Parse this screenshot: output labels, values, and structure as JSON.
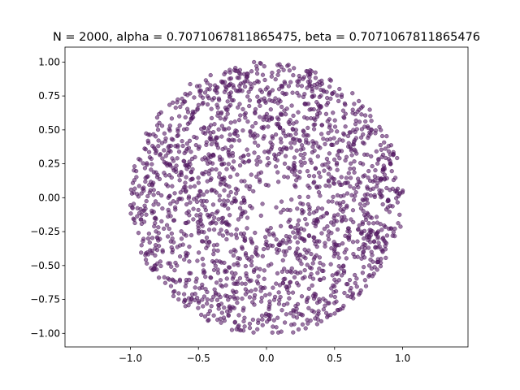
{
  "chart_data": {
    "type": "scatter",
    "title": "N = 2000, alpha = 0.7071067811865475, beta = 0.7071067811865476",
    "xlabel": "",
    "ylabel": "",
    "xlim": [
      -1.48,
      1.48
    ],
    "ylim": [
      -1.1,
      1.11
    ],
    "x_ticks": [
      -1.0,
      -0.5,
      0.0,
      0.5,
      1.0
    ],
    "x_tick_labels": [
      "−1.0",
      "−0.5",
      "0.0",
      "0.5",
      "1.0"
    ],
    "y_ticks": [
      1.0,
      0.75,
      0.5,
      0.25,
      0.0,
      -0.25,
      -0.5,
      -0.75,
      -1.0
    ],
    "y_tick_labels": [
      "1.00",
      "0.75",
      "0.50",
      "0.25",
      "0.00",
      "−0.25",
      "−0.50",
      "−0.75",
      "−1.00"
    ],
    "grid": false,
    "legend": "none",
    "point_count": 2000,
    "point_color": "#5b1f6b",
    "point_edge_color": "#3d0d4d",
    "point_opacity": 0.6,
    "distribution": {
      "shape": "disk",
      "radius": 1.0,
      "sparse_center_radius": 0.3
    }
  }
}
